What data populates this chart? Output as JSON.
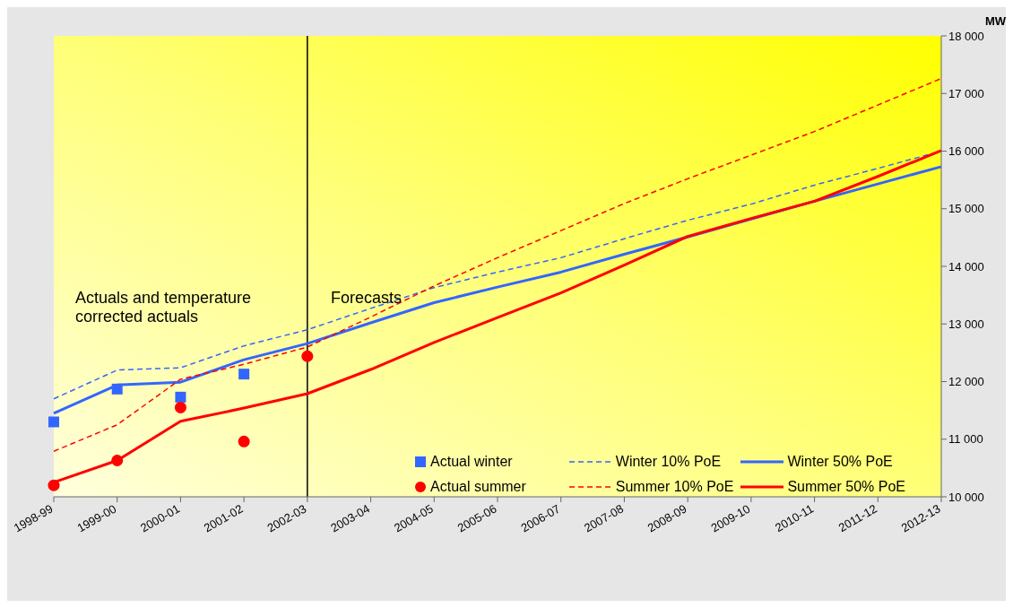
{
  "chart_data": {
    "type": "line",
    "ylabel": "MW",
    "categories": [
      "1998-99",
      "1999-00",
      "2000-01",
      "2001-02",
      "2002-03",
      "2003-04",
      "2004-05",
      "2005-06",
      "2006-07",
      "2007-08",
      "2008-09",
      "2009-10",
      "2010-11",
      "2011-12",
      "2012-13"
    ],
    "series": [
      {
        "name": "Actual winter",
        "type": "scatter",
        "marker": "square",
        "color": "#3366ff",
        "values": [
          11300,
          11870,
          11730,
          12130,
          null,
          null,
          null,
          null,
          null,
          null,
          null,
          null,
          null,
          null,
          null
        ]
      },
      {
        "name": "Winter 10% PoE",
        "line_style": "dashed",
        "color": "#3366ff",
        "values": [
          11700,
          12200,
          12240,
          12620,
          12900,
          13270,
          13630,
          13900,
          14150,
          14480,
          14800,
          15080,
          15410,
          15700,
          16000
        ]
      },
      {
        "name": "Winter 50% PoE",
        "line_style": "solid",
        "color": "#3366ff",
        "values": [
          11450,
          11940,
          11990,
          12380,
          12660,
          13020,
          13370,
          13640,
          13900,
          14210,
          14510,
          14820,
          15130,
          15430,
          15730
        ]
      },
      {
        "name": "Actual summer",
        "type": "scatter",
        "marker": "circle",
        "color": "#ff0000",
        "values": [
          10200,
          10630,
          11550,
          10960,
          12440,
          null,
          null,
          null,
          null,
          null,
          null,
          null,
          null,
          null,
          null
        ]
      },
      {
        "name": "Summer 10% PoE",
        "line_style": "dashed",
        "color": "#ff0000",
        "values": [
          10790,
          11250,
          12040,
          12300,
          12600,
          13120,
          13660,
          14150,
          14620,
          15090,
          15520,
          15930,
          16340,
          16800,
          17260
        ]
      },
      {
        "name": "Summer 50% PoE",
        "line_style": "solid",
        "color": "#ff0000",
        "values": [
          10250,
          10630,
          11310,
          11540,
          11790,
          12210,
          12680,
          13110,
          13540,
          14020,
          14520,
          14830,
          15130,
          15560,
          16010
        ]
      }
    ],
    "ylim": [
      10000,
      18000
    ],
    "yticks": [
      {
        "value": 10000,
        "label": "10 000"
      },
      {
        "value": 11000,
        "label": "11 000"
      },
      {
        "value": 12000,
        "label": "12 000"
      },
      {
        "value": 13000,
        "label": "13 000"
      },
      {
        "value": 14000,
        "label": "14 000"
      },
      {
        "value": 15000,
        "label": "15 000"
      },
      {
        "value": 16000,
        "label": "16 000"
      },
      {
        "value": 17000,
        "label": "17 000"
      },
      {
        "value": 18000,
        "label": "18 000"
      }
    ],
    "ref_lines": [
      {
        "axis": "x",
        "value": "2002-03",
        "color": "#000000"
      }
    ],
    "annotations": [
      "Actuals and temperature corrected actuals",
      "Forecasts"
    ],
    "legend": "bottom right",
    "grid": false
  }
}
